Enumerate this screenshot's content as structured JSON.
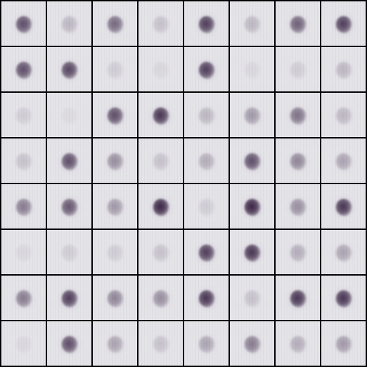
{
  "grid": {
    "rows": 8,
    "cols": 8,
    "background_color": "#e4e3e8",
    "border_color": "#000000",
    "blob_color": "#3a2545",
    "blob_intensity": [
      [
        0.75,
        0.2,
        0.6,
        0.15,
        0.85,
        0.2,
        0.65,
        0.85
      ],
      [
        0.75,
        0.8,
        0.1,
        0.05,
        0.85,
        0.05,
        0.1,
        0.2
      ],
      [
        0.1,
        0.0,
        0.75,
        0.9,
        0.2,
        0.35,
        0.55,
        0.2
      ],
      [
        0.15,
        0.75,
        0.4,
        0.15,
        0.25,
        0.75,
        0.45,
        0.3
      ],
      [
        0.5,
        0.7,
        0.35,
        1.0,
        0.1,
        1.0,
        0.4,
        0.9
      ],
      [
        0.05,
        0.1,
        0.1,
        0.15,
        0.85,
        0.9,
        0.25,
        0.3
      ],
      [
        0.5,
        0.85,
        0.45,
        0.4,
        0.9,
        0.15,
        0.9,
        0.9
      ],
      [
        0.05,
        0.75,
        0.3,
        0.15,
        0.3,
        0.5,
        0.25,
        0.35
      ]
    ]
  }
}
